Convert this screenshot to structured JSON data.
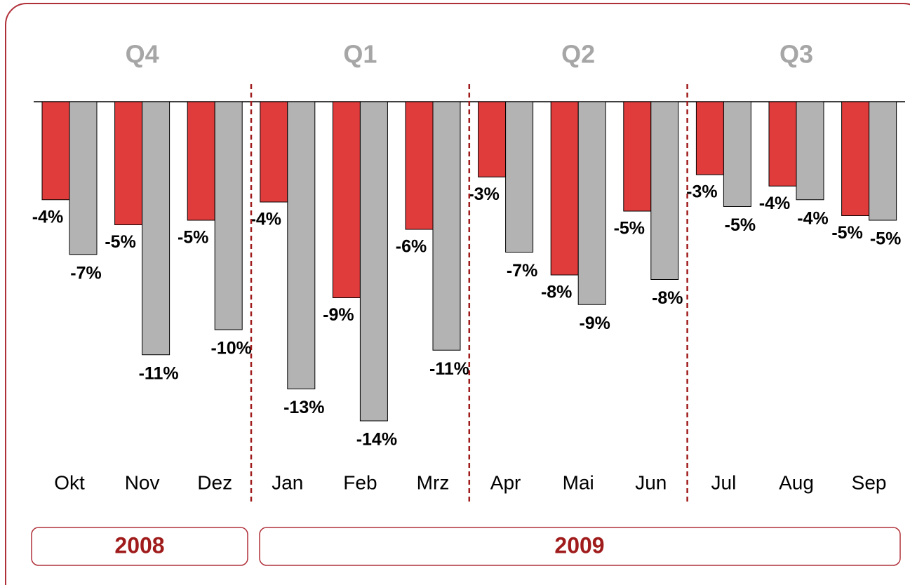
{
  "chart_data": {
    "type": "bar",
    "quarters": [
      "Q4",
      "Q1",
      "Q2",
      "Q3"
    ],
    "years": [
      "2008",
      "2009"
    ],
    "categories": [
      "Okt",
      "Nov",
      "Dez",
      "Jan",
      "Feb",
      "Mrz",
      "Apr",
      "Mai",
      "Jun",
      "Jul",
      "Aug",
      "Sep"
    ],
    "series": [
      {
        "color": "#e03c3c",
        "values": [
          -4.3,
          -5.4,
          -5.2,
          -4.4,
          -8.6,
          -5.6,
          -3.3,
          -7.6,
          -4.8,
          -3.2,
          -3.7,
          -5.0
        ],
        "value_labels": [
          "-4%",
          "-5%",
          "-5%",
          "-4%",
          "-9%",
          "-6%",
          "-3%",
          "-8%",
          "-5%",
          "-3%",
          "-4%",
          "-5%"
        ]
      },
      {
        "color": "#b3b3b3",
        "values": [
          -6.7,
          -11.1,
          -10.0,
          -12.6,
          -14.0,
          -10.9,
          -6.6,
          -8.9,
          -7.8,
          -4.6,
          -4.3,
          -5.2
        ],
        "value_labels": [
          "-7%",
          "-11%",
          "-10%",
          "-13%",
          "-14%",
          "-11%",
          "-7%",
          "-9%",
          "-8%",
          "-5%",
          "-4%",
          "-5%"
        ]
      }
    ],
    "ylim": [
      -16,
      0
    ]
  }
}
